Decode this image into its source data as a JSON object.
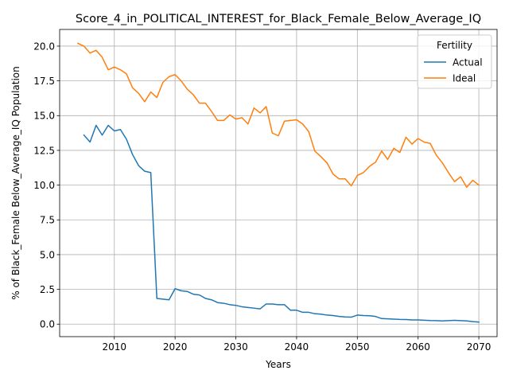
{
  "chart_data": {
    "type": "line",
    "title": "Score_4_in_POLITICAL_INTEREST_for_Black_Female_Below_Average_IQ",
    "xlabel": "Years",
    "ylabel": "% of Black_Female Below_Average_IQ Population",
    "xlim": [
      2001,
      2073
    ],
    "ylim": [
      -0.9,
      21.2
    ],
    "xticks": [
      2010,
      2020,
      2030,
      2040,
      2050,
      2060,
      2070
    ],
    "yticks": [
      0.0,
      2.5,
      5.0,
      7.5,
      10.0,
      12.5,
      15.0,
      17.5,
      20.0
    ],
    "ytick_labels": [
      "0.0",
      "2.5",
      "5.0",
      "7.5",
      "10.0",
      "12.5",
      "15.0",
      "17.5",
      "20.0"
    ],
    "grid": true,
    "legend": {
      "title": "Fertility",
      "position": "top-right"
    },
    "series": [
      {
        "name": "Actual",
        "color": "#1f77b4",
        "x": [
          2005,
          2006,
          2007,
          2008,
          2009,
          2010,
          2011,
          2012,
          2013,
          2014,
          2015,
          2016,
          2017,
          2018,
          2019,
          2020,
          2021,
          2022,
          2023,
          2024,
          2025,
          2026,
          2027,
          2028,
          2029,
          2030,
          2031,
          2032,
          2033,
          2034,
          2035,
          2036,
          2037,
          2038,
          2039,
          2040,
          2041,
          2042,
          2043,
          2044,
          2045,
          2046,
          2047,
          2048,
          2049,
          2050,
          2051,
          2052,
          2053,
          2054,
          2055,
          2056,
          2057,
          2058,
          2059,
          2060,
          2061,
          2062,
          2063,
          2064,
          2065,
          2066,
          2067,
          2068,
          2069,
          2070
        ],
        "values": [
          13.6,
          13.1,
          14.3,
          13.6,
          14.3,
          13.9,
          14.0,
          13.3,
          12.2,
          11.4,
          11.0,
          10.9,
          1.85,
          1.8,
          1.75,
          2.55,
          2.4,
          2.35,
          2.15,
          2.1,
          1.85,
          1.75,
          1.55,
          1.5,
          1.4,
          1.35,
          1.25,
          1.2,
          1.15,
          1.1,
          1.45,
          1.45,
          1.4,
          1.4,
          1.0,
          1.0,
          0.85,
          0.85,
          0.75,
          0.72,
          0.65,
          0.62,
          0.55,
          0.52,
          0.5,
          0.65,
          0.62,
          0.6,
          0.55,
          0.4,
          0.38,
          0.36,
          0.34,
          0.33,
          0.3,
          0.3,
          0.28,
          0.26,
          0.25,
          0.23,
          0.25,
          0.27,
          0.25,
          0.23,
          0.18,
          0.15
        ]
      },
      {
        "name": "Ideal",
        "color": "#ff7f0e",
        "x": [
          2004,
          2005,
          2006,
          2007,
          2008,
          2009,
          2010,
          2011,
          2012,
          2013,
          2014,
          2015,
          2016,
          2017,
          2018,
          2019,
          2020,
          2021,
          2022,
          2023,
          2024,
          2025,
          2026,
          2027,
          2028,
          2029,
          2030,
          2031,
          2032,
          2033,
          2034,
          2035,
          2036,
          2037,
          2038,
          2039,
          2040,
          2041,
          2042,
          2043,
          2044,
          2045,
          2046,
          2047,
          2048,
          2049,
          2050,
          2051,
          2052,
          2053,
          2054,
          2055,
          2056,
          2057,
          2058,
          2059,
          2060,
          2061,
          2062,
          2063,
          2064,
          2065,
          2066,
          2067,
          2068,
          2069,
          2070
        ],
        "values": [
          20.2,
          20.0,
          19.5,
          19.7,
          19.2,
          18.3,
          18.5,
          18.3,
          18.0,
          17.0,
          16.6,
          16.0,
          16.7,
          16.3,
          17.4,
          17.8,
          17.95,
          17.5,
          16.9,
          16.5,
          15.9,
          15.9,
          15.3,
          14.65,
          14.65,
          15.05,
          14.75,
          14.85,
          14.4,
          15.55,
          15.2,
          15.65,
          13.75,
          13.55,
          14.6,
          14.65,
          14.7,
          14.4,
          13.85,
          12.45,
          12.05,
          11.6,
          10.8,
          10.45,
          10.45,
          9.95,
          10.7,
          10.9,
          11.35,
          11.65,
          12.45,
          11.85,
          12.65,
          12.35,
          13.45,
          12.95,
          13.35,
          13.1,
          13.0,
          12.15,
          11.6,
          10.9,
          10.25,
          10.6,
          9.85,
          10.35,
          10.0
        ]
      }
    ]
  }
}
